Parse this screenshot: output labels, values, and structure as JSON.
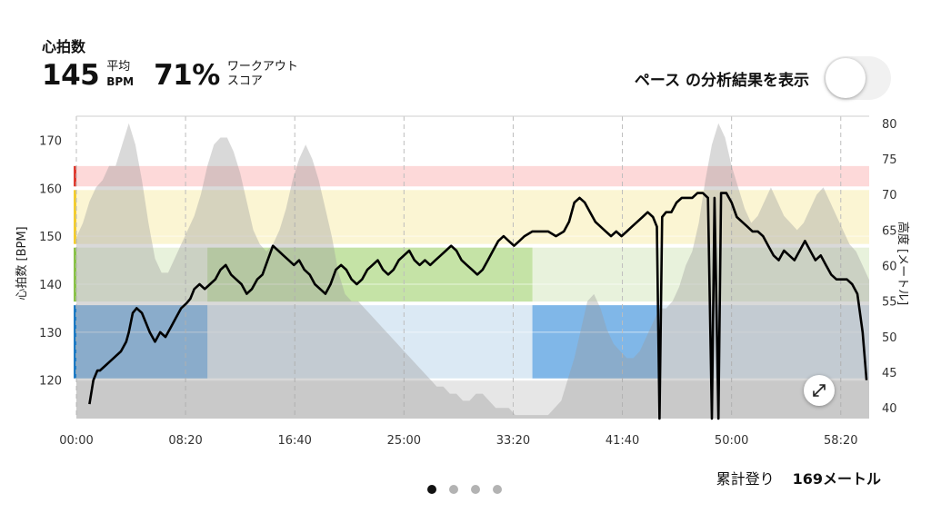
{
  "header": {
    "title": "心拍数",
    "avg_value": "145",
    "avg_label_top": "平均",
    "avg_label_bottom": "BPM",
    "score_value": "71%",
    "score_label_top": "ワークアウト",
    "score_label_bottom": "スコア"
  },
  "toggle": {
    "label": "ペース の分析結果を表示",
    "state": "off"
  },
  "footer": {
    "climb_label": "累計登り",
    "climb_value": "169メートル"
  },
  "pagination": {
    "pages": 4,
    "active": 1
  },
  "icons": {
    "expand": "expand-icon"
  },
  "chart_data": {
    "type": "line",
    "x_ticks": [
      "00:00",
      "08:20",
      "16:40",
      "25:00",
      "33:20",
      "41:40",
      "50:00",
      "58:20"
    ],
    "x_tick_minutes": [
      0,
      8.333,
      16.667,
      25,
      33.333,
      41.667,
      50,
      58.333
    ],
    "xlim_minutes": [
      0,
      60.5
    ],
    "ylabel_left": "心拍数 [BPM]",
    "ylim_left": [
      112,
      175
    ],
    "y_ticks_left": [
      120,
      130,
      140,
      150,
      160,
      170
    ],
    "ylabel_right": "高度 [メートル]",
    "ylim_right": [
      38.5,
      81
    ],
    "y_ticks_right": [
      40,
      45,
      50,
      55,
      60,
      65,
      70,
      75,
      80
    ],
    "zones": [
      {
        "from": 120,
        "to": 136,
        "color": "#dbe9f4",
        "bar": "#1f7bc4",
        "highlight": "#80b7e8"
      },
      {
        "from": 136,
        "to": 148,
        "color": "#e8f2dc",
        "bar": "#8ac24a",
        "highlight": "#c5e3a6"
      },
      {
        "from": 148,
        "to": 160,
        "color": "#fbf5d3",
        "bar": "#f3cd2f",
        "highlight": "#f7e8a0"
      },
      {
        "from": 160,
        "to": 165,
        "color": "#fdd9d9",
        "bar": "#e03c31",
        "highlight": "#f5b0b0"
      }
    ],
    "zone_highlights": [
      {
        "zone": 0,
        "from_minutes": 0,
        "to_minutes": 10
      },
      {
        "zone": 1,
        "from_minutes": 10,
        "to_minutes": 34.8
      },
      {
        "zone": 0,
        "from_minutes": 34.8,
        "to_minutes": 44.5
      }
    ],
    "series": [
      {
        "key": "heart_rate",
        "color": "#000000",
        "points": [
          [
            1.0,
            115
          ],
          [
            1.3,
            120
          ],
          [
            1.6,
            122
          ],
          [
            1.8,
            122
          ],
          [
            2.2,
            123
          ],
          [
            2.6,
            124
          ],
          [
            3.0,
            125
          ],
          [
            3.4,
            126
          ],
          [
            3.8,
            128
          ],
          [
            4.0,
            130
          ],
          [
            4.3,
            134
          ],
          [
            4.6,
            135
          ],
          [
            5.0,
            134
          ],
          [
            5.3,
            132
          ],
          [
            5.6,
            130
          ],
          [
            6.0,
            128
          ],
          [
            6.4,
            130
          ],
          [
            6.8,
            129
          ],
          [
            7.2,
            131
          ],
          [
            7.6,
            133
          ],
          [
            8.0,
            135
          ],
          [
            8.4,
            136
          ],
          [
            8.7,
            137
          ],
          [
            9.0,
            139
          ],
          [
            9.4,
            140
          ],
          [
            9.8,
            139
          ],
          [
            10.2,
            140
          ],
          [
            10.6,
            141
          ],
          [
            11.0,
            143
          ],
          [
            11.4,
            144
          ],
          [
            11.8,
            142
          ],
          [
            12.2,
            141
          ],
          [
            12.6,
            140
          ],
          [
            13.0,
            138
          ],
          [
            13.4,
            139
          ],
          [
            13.8,
            141
          ],
          [
            14.2,
            142
          ],
          [
            14.6,
            145
          ],
          [
            15.0,
            148
          ],
          [
            15.4,
            147
          ],
          [
            15.8,
            146
          ],
          [
            16.2,
            145
          ],
          [
            16.6,
            144
          ],
          [
            17.0,
            145
          ],
          [
            17.4,
            143
          ],
          [
            17.8,
            142
          ],
          [
            18.2,
            140
          ],
          [
            18.6,
            139
          ],
          [
            19.0,
            138
          ],
          [
            19.4,
            140
          ],
          [
            19.8,
            143
          ],
          [
            20.2,
            144
          ],
          [
            20.6,
            143
          ],
          [
            21.0,
            141
          ],
          [
            21.4,
            140
          ],
          [
            21.8,
            141
          ],
          [
            22.2,
            143
          ],
          [
            22.6,
            144
          ],
          [
            23.0,
            145
          ],
          [
            23.4,
            143
          ],
          [
            23.8,
            142
          ],
          [
            24.2,
            143
          ],
          [
            24.6,
            145
          ],
          [
            25.0,
            146
          ],
          [
            25.4,
            147
          ],
          [
            25.8,
            145
          ],
          [
            26.2,
            144
          ],
          [
            26.6,
            145
          ],
          [
            27.0,
            144
          ],
          [
            27.4,
            145
          ],
          [
            27.8,
            146
          ],
          [
            28.2,
            147
          ],
          [
            28.6,
            148
          ],
          [
            29.0,
            147
          ],
          [
            29.4,
            145
          ],
          [
            29.8,
            144
          ],
          [
            30.2,
            143
          ],
          [
            30.6,
            142
          ],
          [
            31.0,
            143
          ],
          [
            31.4,
            145
          ],
          [
            31.8,
            147
          ],
          [
            32.2,
            149
          ],
          [
            32.6,
            150
          ],
          [
            33.0,
            149
          ],
          [
            33.4,
            148
          ],
          [
            33.8,
            149
          ],
          [
            34.2,
            150
          ],
          [
            34.8,
            151
          ],
          [
            35.4,
            151
          ],
          [
            36.0,
            151
          ],
          [
            36.6,
            150
          ],
          [
            37.2,
            151
          ],
          [
            37.6,
            153
          ],
          [
            38.0,
            157
          ],
          [
            38.4,
            158
          ],
          [
            38.8,
            157
          ],
          [
            39.2,
            155
          ],
          [
            39.6,
            153
          ],
          [
            40.0,
            152
          ],
          [
            40.4,
            151
          ],
          [
            40.8,
            150
          ],
          [
            41.2,
            151
          ],
          [
            41.6,
            150
          ],
          [
            42.0,
            151
          ],
          [
            42.4,
            152
          ],
          [
            42.8,
            153
          ],
          [
            43.2,
            154
          ],
          [
            43.6,
            155
          ],
          [
            44.0,
            154
          ],
          [
            44.3,
            152
          ],
          [
            44.5,
            112
          ],
          [
            44.7,
            154
          ],
          [
            45.0,
            155
          ],
          [
            45.4,
            155
          ],
          [
            45.8,
            157
          ],
          [
            46.2,
            158
          ],
          [
            46.6,
            158
          ],
          [
            47.0,
            158
          ],
          [
            47.4,
            159
          ],
          [
            47.8,
            159
          ],
          [
            48.2,
            158
          ],
          [
            48.5,
            112
          ],
          [
            48.7,
            158
          ],
          [
            49.0,
            112
          ],
          [
            49.2,
            159
          ],
          [
            49.6,
            159
          ],
          [
            50.0,
            157
          ],
          [
            50.4,
            154
          ],
          [
            50.8,
            153
          ],
          [
            51.2,
            152
          ],
          [
            51.6,
            151
          ],
          [
            52.0,
            151
          ],
          [
            52.4,
            150
          ],
          [
            52.8,
            148
          ],
          [
            53.2,
            146
          ],
          [
            53.6,
            145
          ],
          [
            54.0,
            147
          ],
          [
            54.4,
            146
          ],
          [
            54.8,
            145
          ],
          [
            55.2,
            147
          ],
          [
            55.6,
            149
          ],
          [
            56.0,
            147
          ],
          [
            56.4,
            145
          ],
          [
            56.8,
            146
          ],
          [
            57.2,
            144
          ],
          [
            57.6,
            142
          ],
          [
            58.0,
            141
          ],
          [
            58.4,
            141
          ],
          [
            58.8,
            141
          ],
          [
            59.2,
            140
          ],
          [
            59.6,
            138
          ],
          [
            60.0,
            130
          ],
          [
            60.3,
            120
          ]
        ]
      },
      {
        "key": "altitude",
        "axis": "right",
        "color": "#c8c8c8",
        "points": [
          [
            0.0,
            64
          ],
          [
            0.5,
            66
          ],
          [
            1.0,
            69
          ],
          [
            1.5,
            71
          ],
          [
            2.0,
            72
          ],
          [
            2.5,
            74
          ],
          [
            3.0,
            74
          ],
          [
            3.5,
            77
          ],
          [
            4.0,
            80
          ],
          [
            4.5,
            77
          ],
          [
            5.0,
            72
          ],
          [
            5.5,
            66
          ],
          [
            6.0,
            61
          ],
          [
            6.5,
            59
          ],
          [
            7.0,
            59
          ],
          [
            7.5,
            61
          ],
          [
            8.0,
            63
          ],
          [
            8.5,
            65
          ],
          [
            9.0,
            67
          ],
          [
            9.5,
            70
          ],
          [
            10.0,
            74
          ],
          [
            10.5,
            77
          ],
          [
            11.0,
            78
          ],
          [
            11.5,
            78
          ],
          [
            12.0,
            76
          ],
          [
            12.5,
            73
          ],
          [
            13.0,
            69
          ],
          [
            13.5,
            65
          ],
          [
            14.0,
            63
          ],
          [
            14.5,
            62
          ],
          [
            15.0,
            63
          ],
          [
            15.5,
            65
          ],
          [
            16.0,
            68
          ],
          [
            16.5,
            72
          ],
          [
            17.0,
            75
          ],
          [
            17.5,
            77
          ],
          [
            18.0,
            75
          ],
          [
            18.5,
            72
          ],
          [
            19.0,
            68
          ],
          [
            19.5,
            64
          ],
          [
            20.0,
            59
          ],
          [
            20.5,
            56
          ],
          [
            21.0,
            55
          ],
          [
            21.5,
            55
          ],
          [
            22.0,
            54
          ],
          [
            22.5,
            53
          ],
          [
            23.0,
            52
          ],
          [
            23.5,
            51
          ],
          [
            24.0,
            50
          ],
          [
            24.5,
            49
          ],
          [
            25.0,
            48
          ],
          [
            25.5,
            47
          ],
          [
            26.0,
            46
          ],
          [
            26.5,
            45
          ],
          [
            27.0,
            44
          ],
          [
            27.5,
            43
          ],
          [
            28.0,
            43
          ],
          [
            28.5,
            42
          ],
          [
            29.0,
            42
          ],
          [
            29.5,
            41
          ],
          [
            30.0,
            41
          ],
          [
            30.5,
            42
          ],
          [
            31.0,
            42
          ],
          [
            31.5,
            41
          ],
          [
            32.0,
            40
          ],
          [
            32.5,
            40
          ],
          [
            33.0,
            40
          ],
          [
            33.5,
            39
          ],
          [
            34.0,
            39
          ],
          [
            34.5,
            39
          ],
          [
            35.0,
            39
          ],
          [
            35.5,
            39
          ],
          [
            36.0,
            39
          ],
          [
            36.5,
            40
          ],
          [
            37.0,
            41
          ],
          [
            37.5,
            44
          ],
          [
            38.0,
            47
          ],
          [
            38.5,
            51
          ],
          [
            39.0,
            55
          ],
          [
            39.5,
            56
          ],
          [
            40.0,
            54
          ],
          [
            40.5,
            51
          ],
          [
            41.0,
            49
          ],
          [
            41.5,
            48
          ],
          [
            42.0,
            47
          ],
          [
            42.5,
            47
          ],
          [
            43.0,
            48
          ],
          [
            43.5,
            50
          ],
          [
            44.0,
            52
          ],
          [
            44.5,
            54
          ],
          [
            45.0,
            54
          ],
          [
            45.5,
            55
          ],
          [
            46.0,
            57
          ],
          [
            46.5,
            60
          ],
          [
            47.0,
            62
          ],
          [
            47.5,
            66
          ],
          [
            48.0,
            72
          ],
          [
            48.5,
            77
          ],
          [
            49.0,
            80
          ],
          [
            49.5,
            78
          ],
          [
            50.0,
            74
          ],
          [
            50.5,
            71
          ],
          [
            51.0,
            68
          ],
          [
            51.5,
            66
          ],
          [
            52.0,
            67
          ],
          [
            52.5,
            69
          ],
          [
            53.0,
            71
          ],
          [
            53.5,
            69
          ],
          [
            54.0,
            67
          ],
          [
            54.5,
            66
          ],
          [
            55.0,
            65
          ],
          [
            55.5,
            66
          ],
          [
            56.0,
            68
          ],
          [
            56.5,
            70
          ],
          [
            57.0,
            71
          ],
          [
            57.5,
            69
          ],
          [
            58.0,
            67
          ],
          [
            58.5,
            65
          ],
          [
            59.0,
            63
          ],
          [
            59.5,
            62
          ],
          [
            60.0,
            60
          ],
          [
            60.5,
            58
          ]
        ]
      }
    ]
  }
}
